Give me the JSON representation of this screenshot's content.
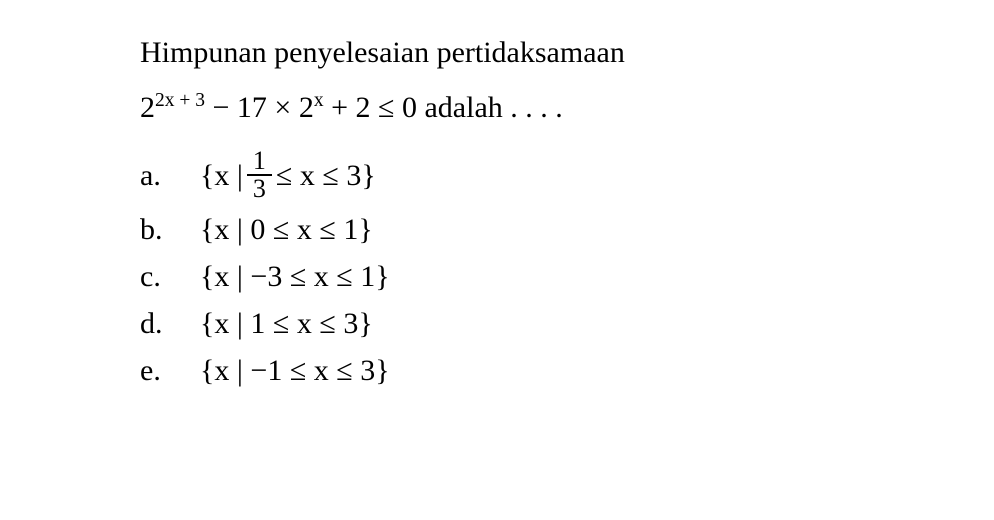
{
  "question": {
    "text": "Himpunan penyelesaian pertidaksamaan",
    "expr_prefix": "2",
    "expr_exp1": "2x + 3",
    "expr_mid1": " − 17 × 2",
    "expr_exp2": "x",
    "expr_mid2": " + 2 ≤ 0 adalah . . . .",
    "font_size": 30,
    "color": "#000000",
    "background": "#ffffff"
  },
  "options": {
    "a": {
      "label": "a.",
      "prefix": "{x | ",
      "frac_num": "1",
      "frac_den": "3",
      "suffix": " ≤ x ≤ 3}"
    },
    "b": {
      "label": "b.",
      "content": "{x | 0 ≤ x ≤ 1}"
    },
    "c": {
      "label": "c.",
      "content": "{x | −3 ≤ x ≤ 1}"
    },
    "d": {
      "label": "d.",
      "content": "{x | 1 ≤ x ≤ 3}"
    },
    "e": {
      "label": "e.",
      "content": "{x | −1 ≤ x ≤ 3}"
    }
  }
}
